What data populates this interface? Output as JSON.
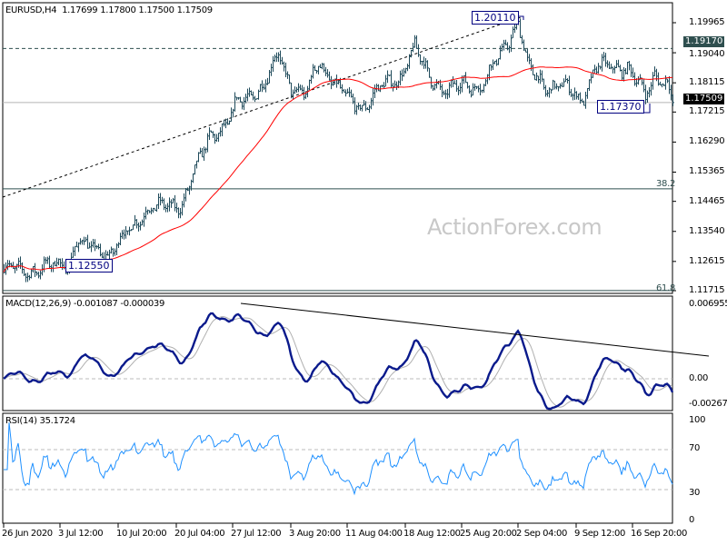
{
  "header": {
    "symbol": "EURUSD,H4",
    "open": "1.17699",
    "high": "1.17800",
    "low": "1.17500",
    "close": "1.17509"
  },
  "watermark": "ActionForex.com",
  "colors": {
    "bars": "#1f4a5a",
    "ma": "#ff0000",
    "macd_main": "#0a1a8c",
    "macd_signal": "#b0b0b0",
    "rsi": "#1e90ff",
    "price_tag": "#000000",
    "level_tag": "#2f4f4f"
  },
  "price_axis": {
    "ticks": [
      "1.19965",
      "1.19040",
      "1.18115",
      "1.17215",
      "1.16290",
      "1.15365",
      "1.14465",
      "1.13540",
      "1.12615",
      "1.11715"
    ],
    "min": 1.11715,
    "max": 1.19965
  },
  "price_tags": {
    "current": "1.17509",
    "resistance": "1.19170"
  },
  "annotations": {
    "high": "1.20110",
    "low_recent": "1.17370",
    "low_start": "1.12550",
    "fib_382": "38.2",
    "fib_618": "61.8"
  },
  "levels": {
    "resistance": 1.1917,
    "current": 1.17509,
    "fib_382": 1.1485,
    "fib_618": 1.1172
  },
  "macd": {
    "label": "MACD(12,26,9) -0.001087 -0.000039",
    "ticks": [
      "0.006955",
      "0.00",
      "-0.002676"
    ],
    "max": 0.006955,
    "min": -0.002676
  },
  "rsi": {
    "label": "RSI(14) 35.1724",
    "ticks": [
      "100",
      "70",
      "30",
      "0"
    ]
  },
  "time_axis": {
    "labels": [
      "26 Jun 2020",
      "3 Jul 12:00",
      "10 Jul 20:00",
      "20 Jul 04:00",
      "27 Jul 12:00",
      "3 Aug 20:00",
      "11 Aug 04:00",
      "18 Aug 12:00",
      "25 Aug 20:00",
      "2 Sep 04:00",
      "9 Sep 12:00",
      "16 Sep 20:00"
    ],
    "bar_index": [
      0,
      31,
      63,
      95,
      126,
      158,
      189,
      221,
      252,
      283,
      315,
      346
    ]
  },
  "chart_data": {
    "type": "ohlc",
    "title": "EURUSD,H4",
    "bar_count": 369,
    "price_path": [
      [
        0,
        1.124
      ],
      [
        14,
        1.1232
      ],
      [
        28,
        1.125
      ],
      [
        36,
        1.1256
      ],
      [
        39,
        1.132
      ],
      [
        58,
        1.1285
      ],
      [
        68,
        1.135
      ],
      [
        78,
        1.142
      ],
      [
        98,
        1.144
      ],
      [
        106,
        1.155
      ],
      [
        113,
        1.165
      ],
      [
        123,
        1.168
      ],
      [
        128,
        1.175
      ],
      [
        143,
        1.18
      ],
      [
        151,
        1.19
      ],
      [
        158,
        1.18
      ],
      [
        166,
        1.177
      ],
      [
        173,
        1.188
      ],
      [
        183,
        1.18
      ],
      [
        191,
        1.175
      ],
      [
        198,
        1.174
      ],
      [
        208,
        1.18
      ],
      [
        218,
        1.183
      ],
      [
        226,
        1.192
      ],
      [
        233,
        1.184
      ],
      [
        243,
        1.178
      ],
      [
        253,
        1.181
      ],
      [
        263,
        1.18
      ],
      [
        271,
        1.188
      ],
      [
        278,
        1.195
      ],
      [
        283,
        1.2
      ],
      [
        288,
        1.186
      ],
      [
        298,
        1.18
      ],
      [
        308,
        1.18
      ],
      [
        318,
        1.176
      ],
      [
        326,
        1.186
      ],
      [
        333,
        1.186
      ],
      [
        343,
        1.186
      ],
      [
        353,
        1.177
      ],
      [
        358,
        1.184
      ],
      [
        365,
        1.181
      ],
      [
        368,
        1.17509
      ]
    ],
    "overlays": [
      "SMA (red)",
      "trendline 1.1255 → 1.2011",
      "horizontal 1.19170",
      "horizontal 1.17509",
      "Fibonacci 38.2",
      "Fibonacci 61.8"
    ],
    "indicators": {
      "macd": {
        "fast": 12,
        "slow": 26,
        "signal": 9,
        "main": -0.001087,
        "signal_value": -3.9e-05
      },
      "rsi": {
        "period": 14,
        "value": 35.1724,
        "levels": [
          30,
          70
        ]
      }
    }
  }
}
